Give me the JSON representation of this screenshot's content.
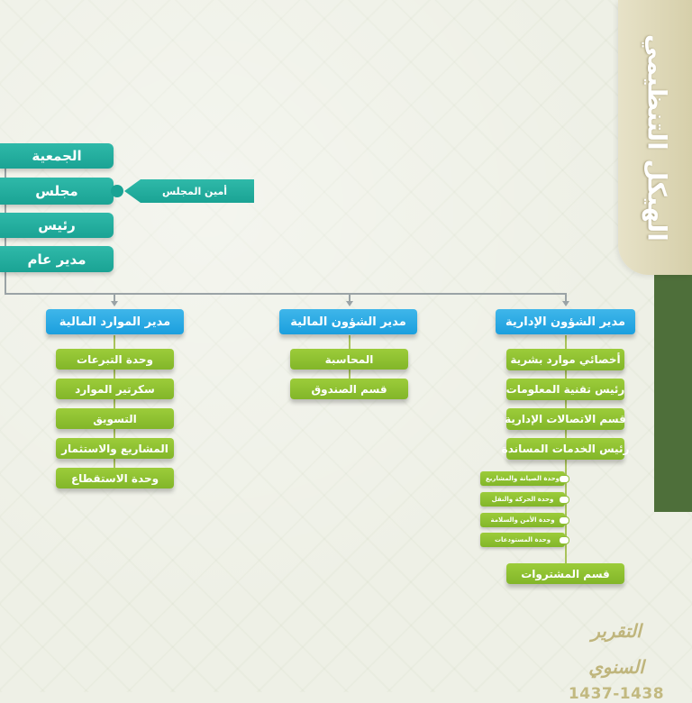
{
  "title": "الهيكل التنظيمي",
  "top_chain": {
    "assembly": "الجمعية",
    "council": "مجلس",
    "president": "رئيس",
    "general_manager": "مدير عام",
    "council_secretary": "أمين المجلس"
  },
  "departments": {
    "financial_resources": {
      "head": "مدير الموارد المالية",
      "items": [
        "وحدة التبرعات",
        "سكرتير الموارد",
        "التسويق",
        "المشاريع والاستثمار",
        "وحدة الاستقطاع"
      ]
    },
    "financial_affairs": {
      "head": "مدير الشؤون المالية",
      "items": [
        "المحاسبة",
        "قسم الصندوق"
      ]
    },
    "administrative_affairs": {
      "head": "مدير الشؤون الإدارية",
      "items": [
        "أخصائي موارد بشرية",
        "رئيس تقنية المعلومات",
        "قسم الاتصالات الإدارية",
        "رئيس الخدمات المساندة"
      ],
      "sub_units": [
        "وحدة الصيانة والمشاريع",
        "وحدة الحركة والنقل",
        "وحدة الأمن والسلامة",
        "وحدة المستودعات"
      ],
      "procurement": "قسم المشتروات"
    }
  },
  "report": {
    "title": "التقرير السنوي",
    "years": "1437-1438"
  }
}
